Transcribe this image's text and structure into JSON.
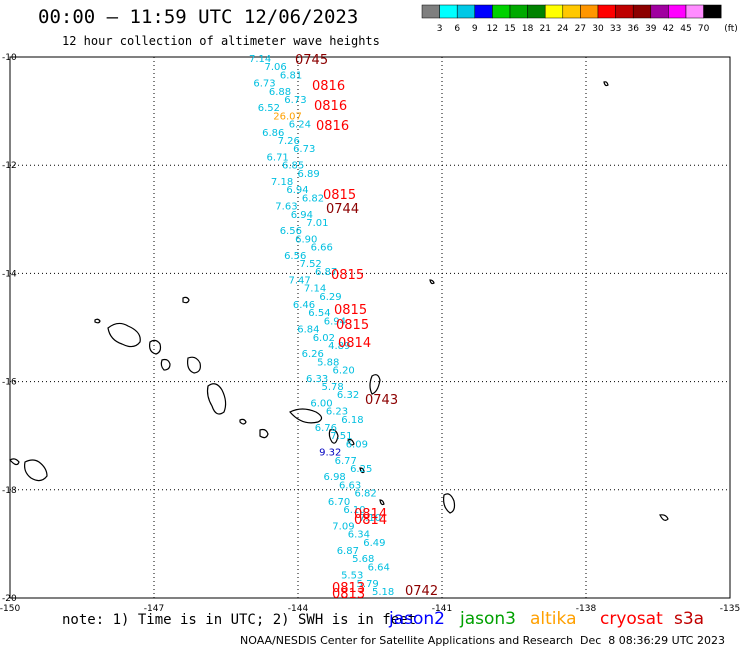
{
  "header": {
    "title": "00:00 – 11:59 UTC 12/06/2023",
    "subtitle": "12 hour collection of altimeter wave heights"
  },
  "scale": {
    "unit": "(ft)",
    "ticks": [
      "3",
      "6",
      "9",
      "12",
      "15",
      "18",
      "21",
      "24",
      "27",
      "30",
      "33",
      "36",
      "39",
      "42",
      "45",
      "70"
    ],
    "colors": [
      "#7f7f7f",
      "#00ffff",
      "#00c8e6",
      "#0000ff",
      "#00d200",
      "#00aa00",
      "#008200",
      "#ffff00",
      "#ffc800",
      "#ff9600",
      "#ff0000",
      "#be0000",
      "#8c0000",
      "#a000a0",
      "#ff00ff",
      "#ff8cff",
      "#000000"
    ]
  },
  "axes": {
    "lat_labels": [
      "-10",
      "-12",
      "-14",
      "-16",
      "-18",
      "-20"
    ],
    "lon_labels": [
      "-150",
      "-147",
      "-144",
      "-141",
      "-138",
      "-135"
    ]
  },
  "times": [
    "0745",
    "0816",
    "0816",
    "0816",
    "0815",
    "0744",
    "0815",
    "0815",
    "0815",
    "0814",
    "0743",
    "0814",
    "0814",
    "0742",
    "0813",
    "0813"
  ],
  "swh_values": [
    "7.14",
    "7.06",
    "6.81",
    "6.73",
    "6.88",
    "6.73",
    "6.52",
    "26.07",
    "6.24",
    "6.86",
    "7.26",
    "6.73",
    "6.71",
    "6.85",
    "6.89",
    "7.18",
    "6.94",
    "6.82",
    "7.63",
    "6.94",
    "7.01",
    "6.56",
    "6.90",
    "6.66",
    "6.56",
    "7.52",
    "6.87",
    "7.47",
    "7.14",
    "6.29",
    "6.46",
    "6.54",
    "6.94",
    "6.84",
    "6.02",
    "4.89",
    "6.26",
    "5.88",
    "6.20",
    "6.33",
    "5.78",
    "6.32",
    "6.00",
    "6.23",
    "6.18",
    "6.76",
    "7.51",
    "6.09",
    "9.32",
    "6.77",
    "6.25",
    "6.98",
    "6.63",
    "6.82",
    "6.70",
    "6.10",
    "7.10",
    "7.09",
    "6.34",
    "6.49",
    "6.87",
    "5.68",
    "6.64",
    "5.53",
    "5.79",
    "5.18"
  ],
  "footer": {
    "note": "note: 1) Time is in UTC; 2) SWH is in feet",
    "satellites": [
      {
        "name": "jason2",
        "color": "#0000ff"
      },
      {
        "name": "jason3",
        "color": "#00a000"
      },
      {
        "name": "altika",
        "color": "#ffa000"
      },
      {
        "name": "cryosat",
        "color": "#ff0000"
      },
      {
        "name": "s3a",
        "color": "#c00000"
      }
    ],
    "credit": "NOAA/NESDIS Center for Satellite Applications and Research",
    "timestamp": "Dec  8 08:36:29 UTC 2023"
  }
}
